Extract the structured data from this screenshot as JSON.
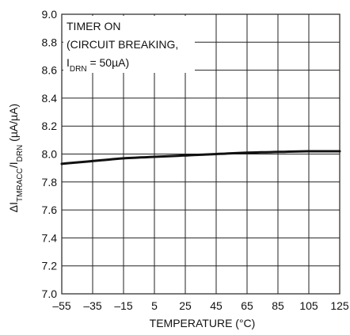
{
  "chart_data": {
    "type": "line",
    "title": "",
    "xlabel": "TEMPERATURE (°C)",
    "ylabel": {
      "parts": [
        {
          "text": "ΔI",
          "sub": false
        },
        {
          "text": "TMRACC",
          "sub": true
        },
        {
          "text": "/I",
          "sub": false
        },
        {
          "text": "DRN",
          "sub": true
        },
        {
          "text": " (µA/µA)",
          "sub": false
        }
      ]
    },
    "xlim": [
      -55,
      125
    ],
    "ylim": [
      7.0,
      9.0
    ],
    "xticks": [
      -55,
      -35,
      -15,
      5,
      25,
      45,
      65,
      85,
      105,
      125
    ],
    "yticks": [
      7.0,
      7.2,
      7.4,
      7.6,
      7.8,
      8.0,
      8.2,
      8.4,
      8.6,
      8.8,
      9.0
    ],
    "xtick_labels": [
      "–55",
      "–35",
      "–15",
      "5",
      "25",
      "45",
      "65",
      "85",
      "105",
      "125"
    ],
    "ytick_labels": [
      "7.0",
      "7.2",
      "7.4",
      "7.6",
      "7.8",
      "8.0",
      "8.2",
      "8.4",
      "8.6",
      "8.8",
      "9.0"
    ],
    "grid": true,
    "annotation": {
      "line1": "TIMER ON",
      "line2": "(CIRCUIT BREAKING,",
      "line3_parts": [
        {
          "text": "I",
          "sub": false
        },
        {
          "text": "DRN",
          "sub": true
        },
        {
          "text": " = 50µA)",
          "sub": false
        }
      ]
    },
    "series": [
      {
        "name": "",
        "color": "#111111",
        "x": [
          -55,
          -35,
          -15,
          5,
          25,
          45,
          65,
          85,
          105,
          125
        ],
        "y": [
          7.93,
          7.95,
          7.97,
          7.98,
          7.99,
          8.0,
          8.01,
          8.015,
          8.02,
          8.02
        ]
      }
    ]
  }
}
